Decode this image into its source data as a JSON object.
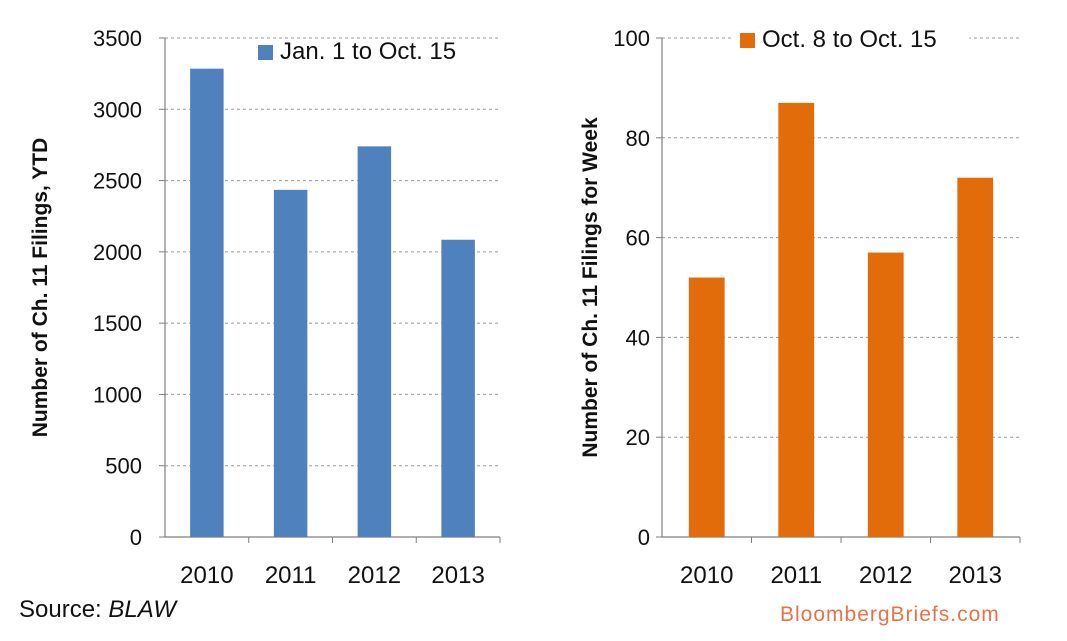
{
  "chart_data": [
    {
      "type": "bar",
      "categories": [
        "2010",
        "2011",
        "2012",
        "2013"
      ],
      "series": [
        {
          "name": "Jan. 1 to Oct. 15",
          "values": [
            3285,
            2435,
            2740,
            2085
          ]
        }
      ],
      "ylabel": "Number of Ch. 11 Filings, YTD",
      "ylim": [
        0,
        3500
      ],
      "yticks": [
        "0",
        "500",
        "1000",
        "1500",
        "2000",
        "2500",
        "3000",
        "3500"
      ],
      "grid": true,
      "legend": "top-right",
      "color": "#4f81bd"
    },
    {
      "type": "bar",
      "categories": [
        "2010",
        "2011",
        "2012",
        "2013"
      ],
      "series": [
        {
          "name": "Oct. 8 to Oct. 15",
          "values": [
            52,
            87,
            57,
            72
          ]
        }
      ],
      "ylabel": "Number of Ch. 11 Filings for Week",
      "ylim": [
        0,
        100
      ],
      "yticks": [
        "0",
        "20",
        "40",
        "60",
        "80",
        "100"
      ],
      "grid": true,
      "legend": "top-right",
      "color": "#e36c0a"
    }
  ],
  "source": {
    "prefix": "Source: ",
    "name": "BLAW"
  },
  "brand": {
    "text": "BloombergBriefs.com",
    "color": "#e8734a"
  }
}
